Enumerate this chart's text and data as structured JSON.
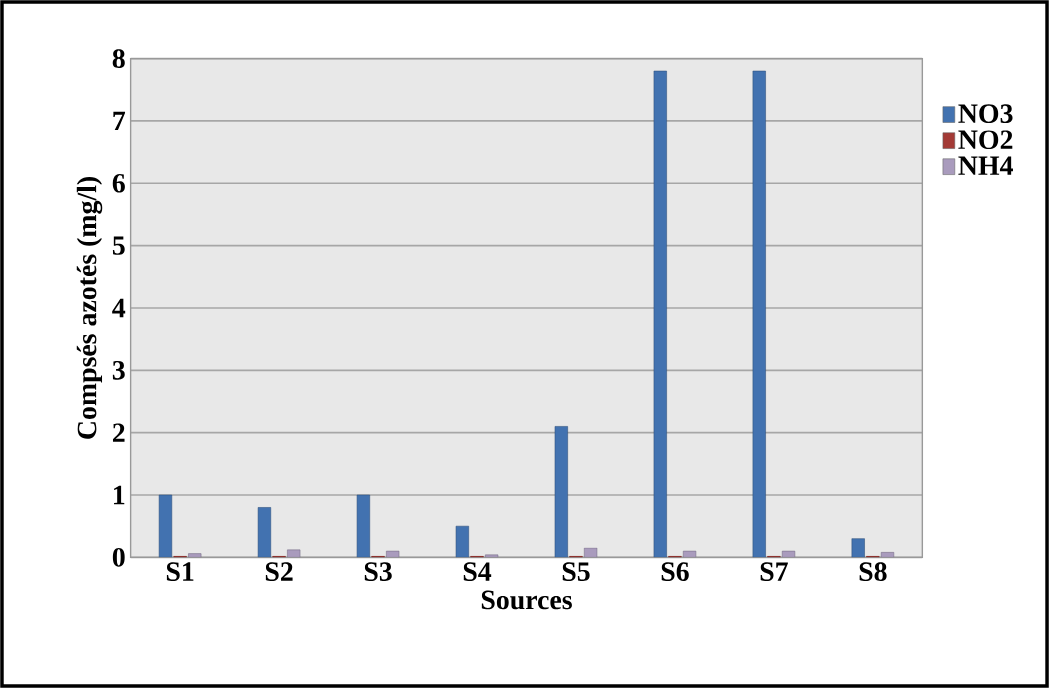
{
  "chart_data": {
    "type": "bar",
    "xlabel": "Sources",
    "ylabel": "Compsés azotés (mg/l)",
    "categories": [
      "S1",
      "S2",
      "S3",
      "S4",
      "S5",
      "S6",
      "S7",
      "S8"
    ],
    "series": [
      {
        "name": "NO3",
        "color": "#4272b0",
        "values": [
          1.0,
          0.8,
          1.0,
          0.5,
          2.1,
          7.8,
          7.8,
          0.3
        ]
      },
      {
        "name": "NO2",
        "color": "#a33a36",
        "values": [
          0.02,
          0.02,
          0.02,
          0.02,
          0.02,
          0.02,
          0.02,
          0.02
        ]
      },
      {
        "name": "NH4",
        "color": "#a99bbd",
        "values": [
          0.06,
          0.12,
          0.1,
          0.04,
          0.15,
          0.1,
          0.1,
          0.08
        ]
      }
    ],
    "ylim": [
      0,
      8
    ],
    "yticks": [
      0,
      1,
      2,
      3,
      4,
      5,
      6,
      7,
      8
    ],
    "grid": "y",
    "legend": "right"
  }
}
